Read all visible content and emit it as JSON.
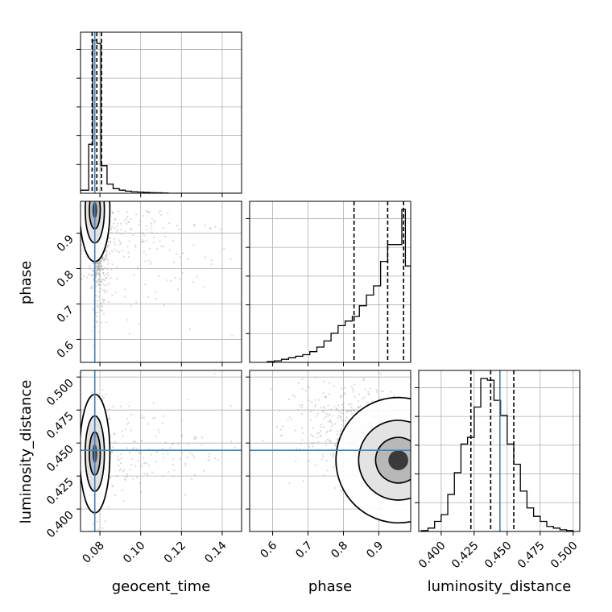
{
  "chart_data": {
    "type": "corner",
    "parameters": [
      "geocent_time",
      "phase",
      "luminosity_distance"
    ],
    "truths": {
      "geocent_time": 0.0775,
      "luminosity_distance": 0.4445
    },
    "truth_color": "#4682b4",
    "grid": true,
    "ranges": {
      "geocent_time": [
        0.0705,
        0.1495
      ],
      "phase": [
        0.535,
        0.99
      ],
      "luminosity_distance": [
        0.383,
        0.505
      ]
    },
    "ticks": {
      "geocent_time": [
        0.08,
        0.1,
        0.12,
        0.14
      ],
      "phase": [
        0.6,
        0.7,
        0.8,
        0.9
      ],
      "luminosity_distance": [
        0.4,
        0.425,
        0.45,
        0.475,
        0.5
      ]
    },
    "tick_labels": {
      "geocent_time": [
        "0.08",
        "0.10",
        "0.12",
        "0.14"
      ],
      "phase": [
        "0.6",
        "0.7",
        "0.8",
        "0.9"
      ],
      "luminosity_distance": [
        "0.400",
        "0.425",
        "0.450",
        "0.475",
        "0.500"
      ]
    },
    "quantiles": {
      "geocent_time": [
        0.0762,
        0.0785,
        0.0808
      ],
      "phase": [
        0.83,
        0.925,
        0.97
      ],
      "luminosity_distance": [
        0.4225,
        0.4375,
        0.455
      ]
    },
    "histograms": {
      "geocent_time": {
        "edges": [
          0.0705,
          0.0745,
          0.0765,
          0.0785,
          0.0805,
          0.0835,
          0.0865,
          0.0895,
          0.0925,
          0.0955,
          0.0985,
          0.1015,
          0.1045,
          0.1075,
          0.1105,
          0.1135,
          0.1495
        ],
        "heights": [
          2,
          32,
          100,
          98,
          18,
          6,
          3,
          2,
          1.4,
          1,
          0.8,
          0.6,
          0.4,
          0.3,
          0.2,
          0
        ]
      },
      "phase": {
        "edges": [
          0.585,
          0.605,
          0.625,
          0.645,
          0.665,
          0.685,
          0.705,
          0.725,
          0.745,
          0.765,
          0.785,
          0.805,
          0.825,
          0.845,
          0.865,
          0.885,
          0.905,
          0.925,
          0.945,
          0.965,
          0.975,
          0.99
        ],
        "heights": [
          0.5,
          1,
          2,
          3,
          4,
          5,
          7,
          10,
          14,
          19,
          24,
          27,
          30,
          37,
          44,
          50,
          66,
          77,
          77,
          100,
          63
        ]
      },
      "luminosity_distance": {
        "edges": [
          0.385,
          0.39,
          0.395,
          0.4,
          0.405,
          0.41,
          0.415,
          0.42,
          0.425,
          0.43,
          0.435,
          0.44,
          0.445,
          0.45,
          0.455,
          0.46,
          0.465,
          0.47,
          0.475,
          0.48,
          0.485,
          0.49,
          0.495,
          0.5
        ],
        "heights": [
          0.5,
          2,
          6,
          10,
          22,
          35,
          52,
          56,
          74,
          91,
          90,
          78,
          69,
          52,
          40,
          24,
          14,
          9,
          6,
          3,
          2,
          1,
          0.5
        ]
      }
    },
    "density_peaks": [
      {
        "x": "geocent_time",
        "y": "phase",
        "center": [
          0.0775,
          0.965
        ],
        "spread": [
          0.0028,
          0.055
        ]
      },
      {
        "x": "geocent_time",
        "y": "luminosity_distance",
        "center": [
          0.0775,
          0.442
        ],
        "spread": [
          0.0028,
          0.017
        ]
      },
      {
        "x": "phase",
        "y": "luminosity_distance",
        "center": [
          0.955,
          0.437
        ],
        "spread": [
          0.05,
          0.018
        ]
      }
    ]
  }
}
